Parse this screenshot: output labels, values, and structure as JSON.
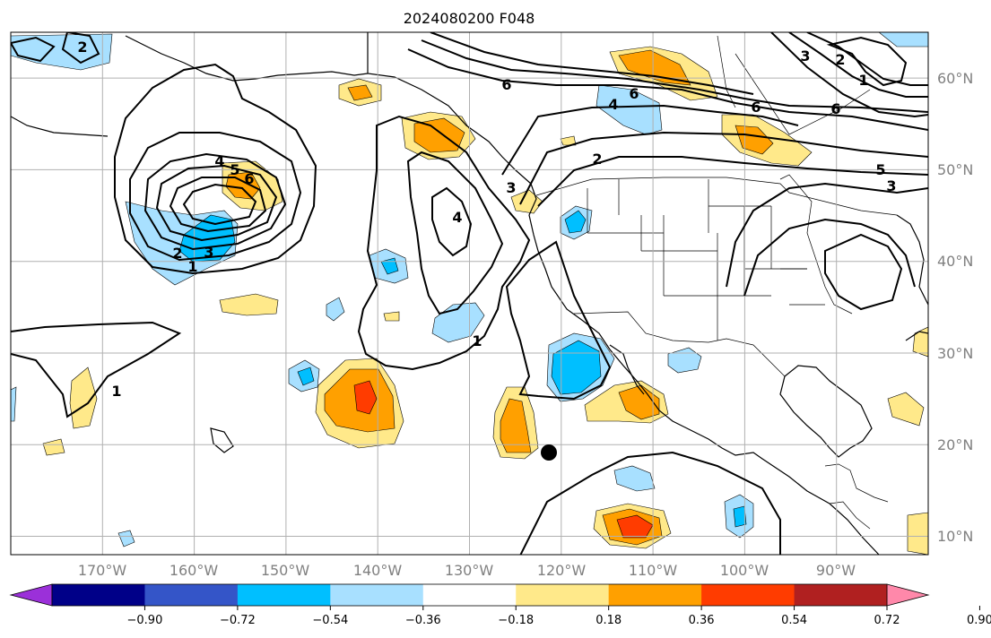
{
  "title": "2024080200 F048",
  "map": {
    "lon_labels": [
      "170°W",
      "160°W",
      "150°W",
      "140°W",
      "130°W",
      "120°W",
      "110°W",
      "100°W",
      "90°W"
    ],
    "lat_labels": [
      "60°N",
      "50°N",
      "40°N",
      "30°N",
      "20°N",
      "10°N"
    ],
    "lon_range": [
      -180,
      -80
    ],
    "lat_range": [
      8,
      65
    ],
    "contour_labels": [
      "1",
      "2",
      "3",
      "4",
      "5",
      "6"
    ],
    "marker": "black dot"
  },
  "colorbar": {
    "ticks": [
      "−0.90",
      "−0.72",
      "−0.54",
      "−0.36",
      "−0.18",
      "0.18",
      "0.36",
      "0.54",
      "0.72",
      "0.90"
    ],
    "colors": [
      "#9b30d9",
      "#000088",
      "#3455c8",
      "#00bfff",
      "#a8e0ff",
      "#ffffff",
      "#ffe98a",
      "#ffa000",
      "#ff3c00",
      "#b02020",
      "#ff88aa"
    ]
  }
}
